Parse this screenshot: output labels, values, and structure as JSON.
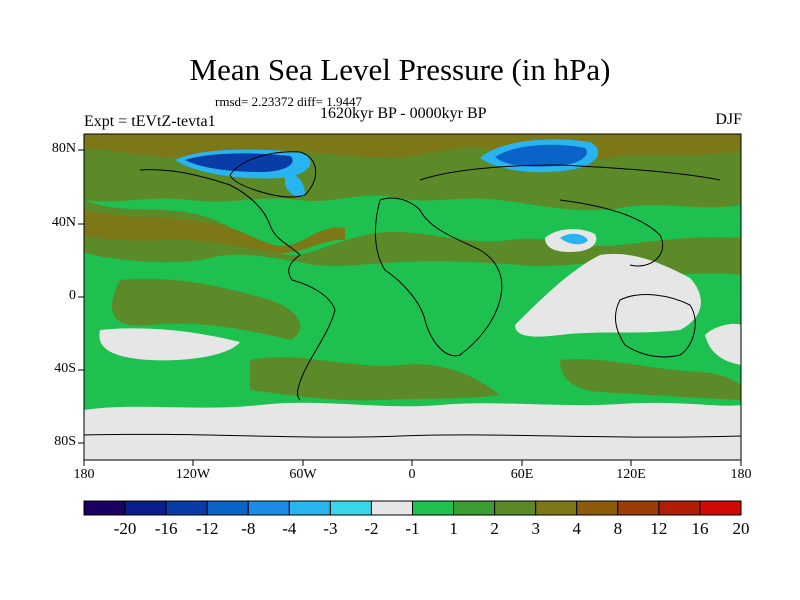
{
  "title": "Mean Sea Level Pressure (in hPa)",
  "stats": "rmsd= 2.23372 diff= 1.9447",
  "period": "1620kyr BP - 0000kyr BP",
  "experiment": "Expt = tEVtZ-tevta1",
  "season": "DJF",
  "lat_labels": [
    "80N",
    "40N",
    "0",
    "40S",
    "80S"
  ],
  "lon_labels": [
    "180",
    "120W",
    "60W",
    "0",
    "60E",
    "120E",
    "180"
  ],
  "colorbar": {
    "colors": [
      "#1a0060",
      "#0a1e8c",
      "#0a3ca8",
      "#0a64c8",
      "#1e8ce6",
      "#28b4ee",
      "#3ad6ea",
      "#e6e6e6",
      "#1ec050",
      "#3c9e32",
      "#5c8a28",
      "#7c7818",
      "#8c5c0c",
      "#9c3c0a",
      "#b01e06",
      "#d00a02"
    ],
    "labels": [
      "-20",
      "-16",
      "-12",
      "-8",
      "-4",
      "-3",
      "-2",
      "-1",
      "1",
      "2",
      "3",
      "4",
      "8",
      "12",
      "16",
      "20"
    ]
  },
  "colors": {
    "green": "#1ec050",
    "dark_green": "#3c9e32",
    "olive": "#5c8a28",
    "brown": "#7c7818",
    "grey": "#e6e6e6",
    "blue": "#0a64c8",
    "light_blue": "#28b4ee"
  }
}
